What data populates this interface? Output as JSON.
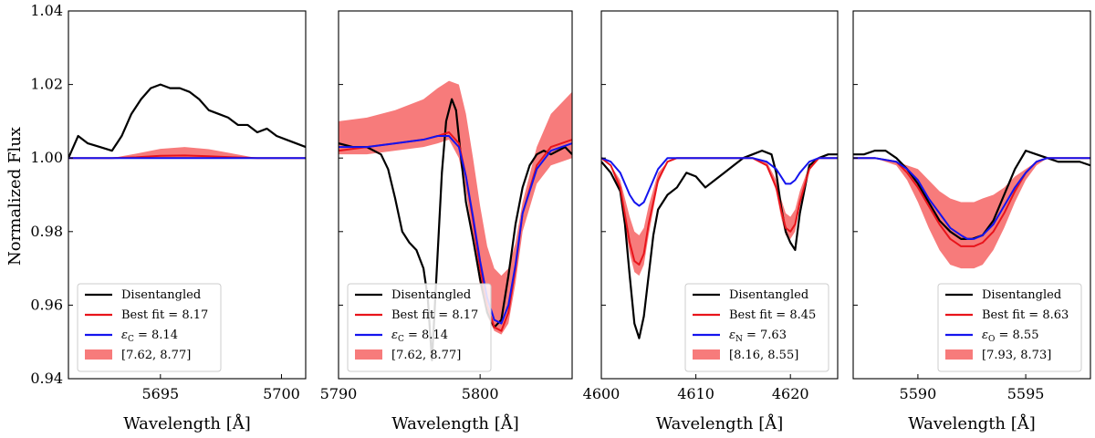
{
  "figure": {
    "ylabel": "Normalized Flux",
    "ylim": [
      0.94,
      1.04
    ],
    "yticks": [
      0.94,
      0.96,
      0.98,
      1.0,
      1.02,
      1.04
    ],
    "ytick_labels": [
      "0.94",
      "0.96",
      "0.98",
      "1.00",
      "1.02",
      "1.04"
    ]
  },
  "colors": {
    "observed": "#000000",
    "best_fit": "#e8141b",
    "reference": "#1414ee",
    "band": "#f77b7b"
  },
  "chart_data": [
    {
      "type": "line",
      "xlabel": "Wavelength [Å]",
      "xlim": [
        5691.2,
        5701.0
      ],
      "xticks": [
        5695,
        5700
      ],
      "xtick_labels": [
        "5695",
        "5700"
      ],
      "legend": {
        "placement": "lower-left",
        "entries": [
          "Disentangled",
          "Best fit = 8.17",
          "εC = 8.14",
          "[7.62, 8.77]"
        ]
      },
      "series": [
        {
          "name": "Disentangled",
          "x": [
            5691.2,
            5691.6,
            5692.0,
            5692.5,
            5693.0,
            5693.4,
            5693.8,
            5694.2,
            5694.6,
            5695.0,
            5695.4,
            5695.8,
            5696.2,
            5696.6,
            5697.0,
            5697.4,
            5697.8,
            5698.2,
            5698.6,
            5699.0,
            5699.4,
            5699.8,
            5700.2,
            5700.6,
            5701.0
          ],
          "y": [
            1.0,
            1.006,
            1.004,
            1.003,
            1.002,
            1.006,
            1.012,
            1.016,
            1.019,
            1.02,
            1.019,
            1.019,
            1.018,
            1.016,
            1.013,
            1.012,
            1.011,
            1.009,
            1.009,
            1.007,
            1.008,
            1.006,
            1.005,
            1.004,
            1.003
          ]
        },
        {
          "name": "Best fit = 8.17",
          "x": [
            5691.2,
            5693.0,
            5694.0,
            5695.0,
            5696.0,
            5697.0,
            5698.0,
            5699.0,
            5701.0
          ],
          "y": [
            1.0,
            1.0,
            1.0002,
            1.0006,
            1.0007,
            1.0005,
            1.0002,
            1.0,
            1.0
          ]
        },
        {
          "name": "εC = 8.14",
          "x": [
            5691.2,
            5701.0
          ],
          "y": [
            1.0,
            1.0
          ]
        }
      ],
      "band": {
        "name": "[7.62, 8.77]",
        "x": [
          5691.2,
          5693.0,
          5694.0,
          5695.0,
          5696.0,
          5697.0,
          5698.0,
          5699.0,
          5701.0
        ],
        "lower": [
          1.0,
          1.0,
          1.0,
          1.0,
          1.0,
          1.0,
          1.0,
          1.0,
          1.0
        ],
        "upper": [
          1.0,
          1.0,
          1.0012,
          1.0025,
          1.003,
          1.0024,
          1.0012,
          1.0,
          1.0
        ]
      }
    },
    {
      "type": "line",
      "xlabel": "Wavelength [Å]",
      "xlim": [
        5790.0,
        5806.5
      ],
      "xticks": [
        5790,
        5800
      ],
      "xtick_labels": [
        "5790",
        "5800"
      ],
      "legend": {
        "placement": "lower-left",
        "entries": [
          "Disentangled",
          "Best fit = 8.17",
          "εC = 8.14",
          "[7.62, 8.77]"
        ]
      },
      "series": [
        {
          "name": "Disentangled",
          "x": [
            5790.0,
            5791.0,
            5792.0,
            5793.0,
            5793.5,
            5794.0,
            5794.5,
            5795.0,
            5795.5,
            5796.0,
            5796.3,
            5796.6,
            5797.0,
            5797.3,
            5797.6,
            5798.0,
            5798.3,
            5798.6,
            5799.0,
            5799.5,
            5800.0,
            5800.5,
            5801.0,
            5801.5,
            5802.0,
            5802.5,
            5803.0,
            5803.5,
            5804.0,
            5804.5,
            5805.0,
            5805.5,
            5806.0,
            5806.5
          ],
          "y": [
            1.004,
            1.003,
            1.003,
            1.001,
            0.997,
            0.989,
            0.98,
            0.977,
            0.975,
            0.97,
            0.962,
            0.945,
            0.974,
            0.996,
            1.01,
            1.016,
            1.013,
            1.002,
            0.988,
            0.978,
            0.967,
            0.958,
            0.954,
            0.956,
            0.968,
            0.982,
            0.992,
            0.998,
            1.001,
            1.002,
            1.001,
            1.002,
            1.003,
            1.001
          ]
        },
        {
          "name": "Best fit = 8.17",
          "x": [
            5790.0,
            5792.0,
            5794.0,
            5796.0,
            5797.0,
            5797.8,
            5798.5,
            5799.0,
            5799.5,
            5800.0,
            5800.5,
            5801.0,
            5801.5,
            5802.0,
            5802.5,
            5803.0,
            5804.0,
            5805.0,
            5806.5
          ],
          "y": [
            1.002,
            1.003,
            1.004,
            1.005,
            1.006,
            1.007,
            1.004,
            0.995,
            0.983,
            0.97,
            0.96,
            0.954,
            0.953,
            0.958,
            0.97,
            0.985,
            0.998,
            1.003,
            1.005
          ]
        },
        {
          "name": "εC = 8.14",
          "x": [
            5790.0,
            5792.0,
            5794.0,
            5796.0,
            5797.0,
            5797.8,
            5798.5,
            5799.0,
            5799.5,
            5800.0,
            5800.5,
            5801.0,
            5801.5,
            5802.0,
            5802.5,
            5803.0,
            5804.0,
            5805.0,
            5806.5
          ],
          "y": [
            1.003,
            1.003,
            1.004,
            1.005,
            1.006,
            1.006,
            1.003,
            0.995,
            0.984,
            0.972,
            0.962,
            0.956,
            0.955,
            0.96,
            0.971,
            0.985,
            0.997,
            1.002,
            1.004
          ]
        }
      ],
      "band": {
        "name": "[7.62, 8.77]",
        "x": [
          5790.0,
          5792.0,
          5794.0,
          5796.0,
          5797.0,
          5797.8,
          5798.5,
          5799.0,
          5799.5,
          5800.0,
          5800.5,
          5801.0,
          5801.5,
          5802.0,
          5802.5,
          5803.0,
          5804.0,
          5805.0,
          5806.5
        ],
        "lower": [
          1.001,
          1.001,
          1.002,
          1.003,
          1.004,
          1.005,
          1.0,
          0.991,
          0.978,
          0.965,
          0.957,
          0.953,
          0.952,
          0.955,
          0.966,
          0.98,
          0.993,
          0.998,
          1.0
        ],
        "upper": [
          1.01,
          1.011,
          1.013,
          1.016,
          1.019,
          1.021,
          1.02,
          1.012,
          1.0,
          0.987,
          0.976,
          0.97,
          0.968,
          0.97,
          0.977,
          0.988,
          1.003,
          1.012,
          1.018
        ]
      }
    },
    {
      "type": "line",
      "xlabel": "Wavelength [Å]",
      "xlim": [
        4600.0,
        4625.0
      ],
      "xticks": [
        4600,
        4610,
        4620
      ],
      "xtick_labels": [
        "4600",
        "4610",
        "4620"
      ],
      "legend": {
        "placement": "lower-right",
        "entries": [
          "Disentangled",
          "Best fit = 8.45",
          "εN = 7.63",
          "[8.16, 8.55]"
        ]
      },
      "series": [
        {
          "name": "Disentangled",
          "x": [
            4600.0,
            4601.0,
            4602.0,
            4602.5,
            4603.0,
            4603.5,
            4604.0,
            4604.5,
            4605.0,
            4605.5,
            4606.0,
            4607.0,
            4608.0,
            4609.0,
            4610.0,
            4611.0,
            4612.0,
            4613.0,
            4614.0,
            4615.0,
            4616.0,
            4617.0,
            4618.0,
            4618.5,
            4619.0,
            4619.5,
            4620.0,
            4620.5,
            4621.0,
            4622.0,
            4623.0,
            4624.0,
            4625.0
          ],
          "y": [
            0.999,
            0.996,
            0.991,
            0.982,
            0.968,
            0.955,
            0.951,
            0.957,
            0.968,
            0.979,
            0.986,
            0.99,
            0.992,
            0.996,
            0.995,
            0.992,
            0.994,
            0.996,
            0.998,
            1.0,
            1.001,
            1.002,
            1.001,
            0.996,
            0.987,
            0.98,
            0.977,
            0.975,
            0.985,
            0.998,
            1.0,
            1.001,
            1.001
          ]
        },
        {
          "name": "Best fit = 8.45",
          "x": [
            4600.0,
            4601.0,
            4602.0,
            4603.0,
            4603.5,
            4604.0,
            4604.5,
            4605.0,
            4606.0,
            4607.0,
            4608.0,
            4616.0,
            4617.5,
            4618.5,
            4619.0,
            4619.5,
            4620.0,
            4620.5,
            4621.0,
            4622.0,
            4623.0,
            4625.0
          ],
          "y": [
            1.0,
            0.998,
            0.992,
            0.977,
            0.972,
            0.971,
            0.974,
            0.982,
            0.994,
            0.999,
            1.0,
            1.0,
            0.998,
            0.992,
            0.986,
            0.981,
            0.98,
            0.982,
            0.988,
            0.997,
            1.0,
            1.0
          ]
        },
        {
          "name": "εN = 7.63",
          "x": [
            4600.0,
            4601.0,
            4602.0,
            4603.0,
            4603.5,
            4604.0,
            4604.5,
            4605.0,
            4606.0,
            4607.0,
            4608.0,
            4616.0,
            4617.5,
            4618.5,
            4619.0,
            4619.5,
            4620.0,
            4620.5,
            4621.0,
            4622.0,
            4623.0,
            4625.0
          ],
          "y": [
            1.0,
            0.999,
            0.996,
            0.99,
            0.988,
            0.987,
            0.988,
            0.991,
            0.997,
            1.0,
            1.0,
            1.0,
            0.999,
            0.997,
            0.995,
            0.993,
            0.993,
            0.994,
            0.996,
            0.999,
            1.0,
            1.0
          ]
        }
      ],
      "band": {
        "name": "[8.16, 8.55]",
        "x": [
          4600.0,
          4601.0,
          4602.0,
          4603.0,
          4603.5,
          4604.0,
          4604.5,
          4605.0,
          4606.0,
          4607.0,
          4608.0,
          4616.0,
          4617.5,
          4618.5,
          4619.0,
          4619.5,
          4620.0,
          4620.5,
          4621.0,
          4622.0,
          4623.0,
          4625.0
        ],
        "lower": [
          1.0,
          0.998,
          0.99,
          0.974,
          0.969,
          0.968,
          0.971,
          0.979,
          0.993,
          0.999,
          1.0,
          1.0,
          0.998,
          0.991,
          0.984,
          0.979,
          0.978,
          0.98,
          0.987,
          0.997,
          1.0,
          1.0
        ],
        "upper": [
          1.0,
          0.998,
          0.994,
          0.984,
          0.98,
          0.979,
          0.981,
          0.987,
          0.996,
          0.999,
          1.0,
          1.0,
          0.999,
          0.994,
          0.989,
          0.985,
          0.984,
          0.986,
          0.991,
          0.998,
          1.0,
          1.0
        ]
      }
    },
    {
      "type": "line",
      "xlabel": "Wavelength [Å]",
      "xlim": [
        5587.0,
        5598.0
      ],
      "xticks": [
        5590,
        5595
      ],
      "xtick_labels": [
        "5590",
        "5595"
      ],
      "legend": {
        "placement": "lower-right",
        "entries": [
          "Disentangled",
          "Best fit = 8.63",
          "εO = 8.55",
          "[7.93, 8.73]"
        ]
      },
      "series": [
        {
          "name": "Disentangled",
          "x": [
            5587.0,
            5587.5,
            5588.0,
            5588.5,
            5589.0,
            5589.5,
            5590.0,
            5590.5,
            5591.0,
            5591.5,
            5592.0,
            5592.5,
            5593.0,
            5593.5,
            5594.0,
            5594.5,
            5595.0,
            5595.5,
            5596.0,
            5596.5,
            5597.0,
            5597.5,
            5598.0
          ],
          "y": [
            1.001,
            1.001,
            1.002,
            1.002,
            1.0,
            0.997,
            0.993,
            0.988,
            0.983,
            0.98,
            0.978,
            0.978,
            0.979,
            0.983,
            0.99,
            0.997,
            1.002,
            1.001,
            1.0,
            0.999,
            0.999,
            0.999,
            0.998
          ]
        },
        {
          "name": "Best fit = 8.63",
          "x": [
            5587.0,
            5588.0,
            5589.0,
            5589.5,
            5590.0,
            5590.5,
            5591.0,
            5591.5,
            5592.0,
            5592.3,
            5592.6,
            5593.0,
            5593.5,
            5594.0,
            5594.5,
            5595.0,
            5595.5,
            5596.0,
            5597.0,
            5598.0
          ],
          "y": [
            1.0,
            1.0,
            0.999,
            0.996,
            0.992,
            0.987,
            0.982,
            0.978,
            0.976,
            0.976,
            0.976,
            0.977,
            0.98,
            0.985,
            0.991,
            0.996,
            0.999,
            1.0,
            1.0,
            1.0
          ]
        },
        {
          "name": "εO = 8.55",
          "x": [
            5587.0,
            5588.0,
            5589.0,
            5589.5,
            5590.0,
            5590.5,
            5591.0,
            5591.5,
            5592.0,
            5592.3,
            5592.6,
            5593.0,
            5593.5,
            5594.0,
            5594.5,
            5595.0,
            5595.5,
            5596.0,
            5597.0,
            5598.0
          ],
          "y": [
            1.0,
            1.0,
            0.999,
            0.997,
            0.994,
            0.989,
            0.985,
            0.981,
            0.979,
            0.978,
            0.978,
            0.979,
            0.982,
            0.987,
            0.992,
            0.996,
            0.999,
            1.0,
            1.0,
            1.0
          ]
        }
      ],
      "band": {
        "name": "[7.93, 8.73]",
        "x": [
          5587.0,
          5588.0,
          5589.0,
          5589.5,
          5590.0,
          5590.5,
          5591.0,
          5591.5,
          5592.0,
          5592.3,
          5592.6,
          5593.0,
          5593.5,
          5594.0,
          5594.5,
          5595.0,
          5595.5,
          5596.0,
          5597.0,
          5598.0
        ],
        "lower": [
          1.0,
          1.0,
          0.998,
          0.994,
          0.988,
          0.981,
          0.975,
          0.971,
          0.97,
          0.97,
          0.97,
          0.971,
          0.975,
          0.981,
          0.988,
          0.994,
          0.998,
          1.0,
          1.0,
          1.0
        ],
        "upper": [
          1.0,
          1.0,
          0.999,
          0.998,
          0.997,
          0.994,
          0.991,
          0.989,
          0.988,
          0.988,
          0.988,
          0.989,
          0.99,
          0.992,
          0.995,
          0.997,
          0.999,
          1.0,
          1.0,
          1.0
        ]
      }
    }
  ]
}
